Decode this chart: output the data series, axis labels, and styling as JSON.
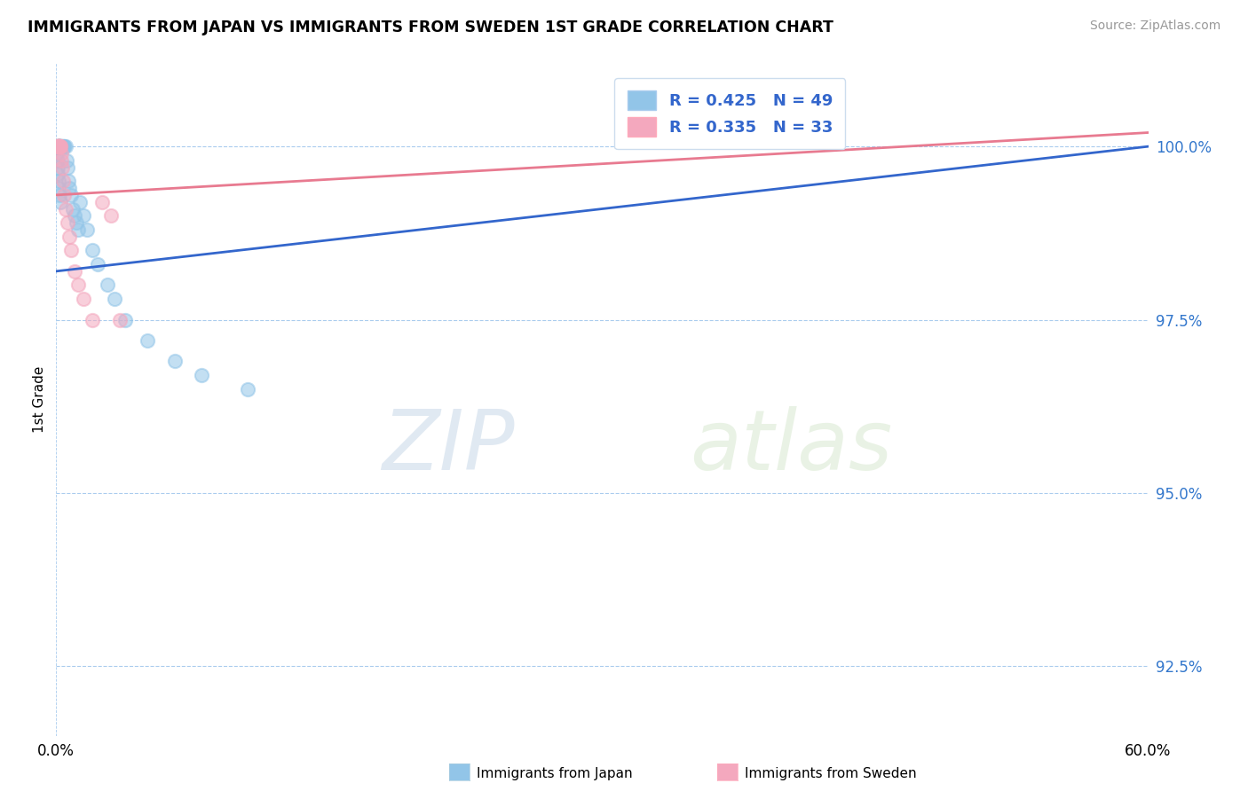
{
  "title": "IMMIGRANTS FROM JAPAN VS IMMIGRANTS FROM SWEDEN 1ST GRADE CORRELATION CHART",
  "source": "Source: ZipAtlas.com",
  "ylabel": "1st Grade",
  "ytick_labels": [
    "92.5%",
    "95.0%",
    "97.5%",
    "100.0%"
  ],
  "ytick_values": [
    92.5,
    95.0,
    97.5,
    100.0
  ],
  "xlim": [
    0.0,
    60.0
  ],
  "ylim": [
    91.5,
    101.2
  ],
  "legend_japan": "R = 0.425   N = 49",
  "legend_sweden": "R = 0.335   N = 33",
  "color_japan": "#92C5E8",
  "color_sweden": "#F4A8BE",
  "line_color_japan": "#3366CC",
  "line_color_sweden": "#E87A90",
  "watermark_zip": "ZIP",
  "watermark_atlas": "atlas",
  "background_color": "#FFFFFF",
  "japan_x": [
    0.05,
    0.08,
    0.1,
    0.12,
    0.13,
    0.14,
    0.15,
    0.16,
    0.17,
    0.18,
    0.2,
    0.22,
    0.25,
    0.28,
    0.3,
    0.35,
    0.4,
    0.42,
    0.45,
    0.5,
    0.55,
    0.6,
    0.65,
    0.7,
    0.8,
    0.9,
    1.0,
    1.1,
    1.2,
    1.3,
    1.5,
    1.7,
    2.0,
    2.3,
    2.8,
    3.2,
    3.8,
    5.0,
    6.5,
    8.0,
    10.5,
    0.05,
    0.06,
    0.07,
    0.09,
    0.11,
    0.15,
    0.2,
    0.25
  ],
  "japan_y": [
    100.0,
    100.0,
    100.0,
    100.0,
    100.0,
    100.0,
    100.0,
    100.0,
    100.0,
    100.0,
    100.0,
    100.0,
    100.0,
    100.0,
    100.0,
    100.0,
    100.0,
    100.0,
    100.0,
    100.0,
    99.8,
    99.7,
    99.5,
    99.4,
    99.3,
    99.1,
    99.0,
    98.9,
    98.8,
    99.2,
    99.0,
    98.8,
    98.5,
    98.3,
    98.0,
    97.8,
    97.5,
    97.2,
    96.9,
    96.7,
    96.5,
    99.9,
    99.8,
    99.7,
    99.6,
    99.5,
    99.4,
    99.3,
    99.2
  ],
  "sweden_x": [
    0.05,
    0.07,
    0.08,
    0.09,
    0.1,
    0.11,
    0.12,
    0.13,
    0.14,
    0.15,
    0.17,
    0.18,
    0.2,
    0.22,
    0.25,
    0.28,
    0.3,
    0.35,
    0.4,
    0.45,
    0.5,
    0.6,
    0.7,
    0.8,
    1.0,
    1.2,
    1.5,
    2.0,
    2.5,
    3.0,
    0.1,
    0.15,
    3.5
  ],
  "sweden_y": [
    100.0,
    100.0,
    100.0,
    100.0,
    100.0,
    100.0,
    100.0,
    100.0,
    100.0,
    100.0,
    100.0,
    100.0,
    100.0,
    100.0,
    100.0,
    99.9,
    99.8,
    99.7,
    99.5,
    99.3,
    99.1,
    98.9,
    98.7,
    98.5,
    98.2,
    98.0,
    97.8,
    97.5,
    99.2,
    99.0,
    100.0,
    100.0,
    97.5
  ],
  "trendline_japan_x0": 0.0,
  "trendline_japan_y0": 98.2,
  "trendline_japan_x1": 60.0,
  "trendline_japan_y1": 100.0,
  "trendline_sweden_x0": 0.0,
  "trendline_sweden_y0": 99.3,
  "trendline_sweden_x1": 60.0,
  "trendline_sweden_y1": 100.2
}
